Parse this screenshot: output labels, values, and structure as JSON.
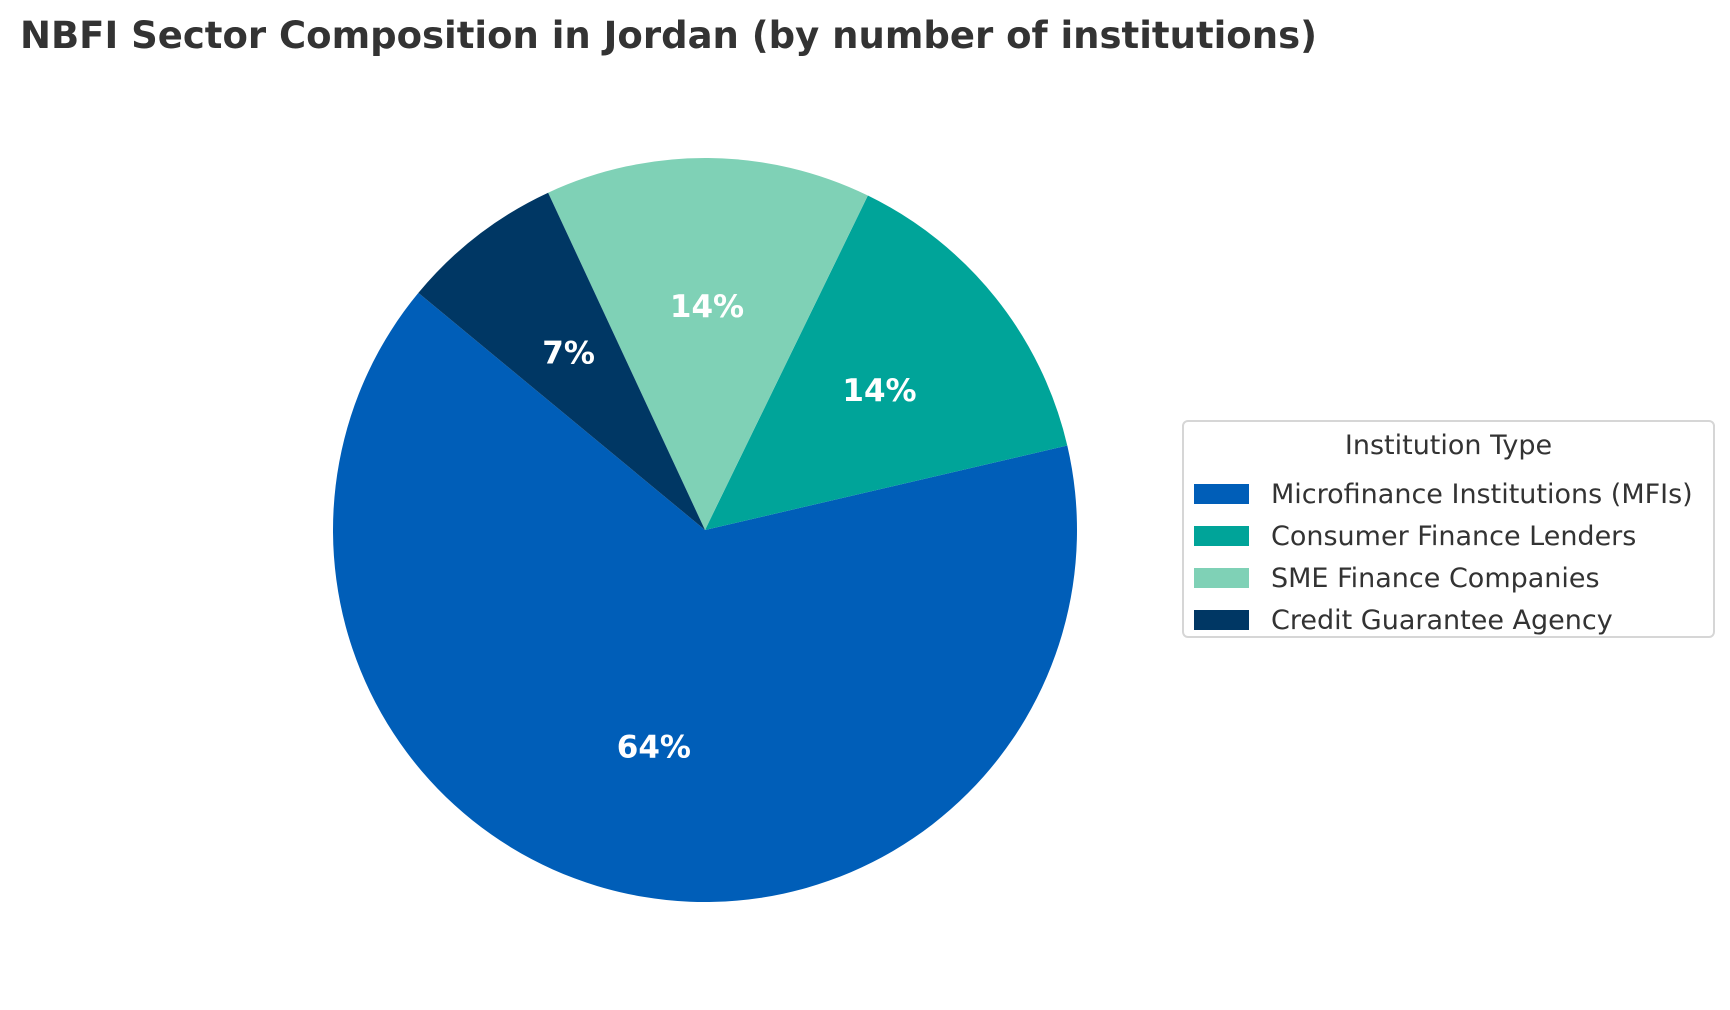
{
  "chart_data": {
    "type": "pie",
    "title": "NBFI Sector Composition in Jordan (by number of institutions)",
    "legend_title": "Institution Type",
    "legend_placement": "right",
    "slices": [
      {
        "label": "Microfinance Institutions (MFIs)",
        "value": 64,
        "display": "64%",
        "color": "#005EB8"
      },
      {
        "label": "Consumer Finance Lenders",
        "value": 14,
        "display": "14%",
        "color": "#00A499"
      },
      {
        "label": "SME Finance Companies",
        "value": 14,
        "display": "14%",
        "color": "#7FD1B6"
      },
      {
        "label": "Credit Guarantee Agency",
        "value": 7,
        "display": "7%",
        "color": "#003764"
      }
    ]
  }
}
